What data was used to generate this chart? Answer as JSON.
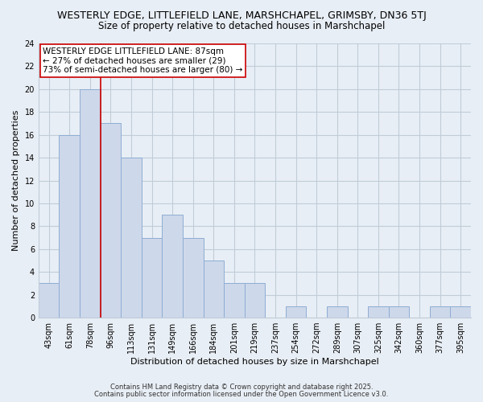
{
  "title": "WESTERLY EDGE, LITTLEFIELD LANE, MARSHCHAPEL, GRIMSBY, DN36 5TJ",
  "subtitle": "Size of property relative to detached houses in Marshchapel",
  "xlabel": "Distribution of detached houses by size in Marshchapel",
  "ylabel": "Number of detached properties",
  "categories": [
    "43sqm",
    "61sqm",
    "78sqm",
    "96sqm",
    "113sqm",
    "131sqm",
    "149sqm",
    "166sqm",
    "184sqm",
    "201sqm",
    "219sqm",
    "237sqm",
    "254sqm",
    "272sqm",
    "289sqm",
    "307sqm",
    "325sqm",
    "342sqm",
    "360sqm",
    "377sqm",
    "395sqm"
  ],
  "values": [
    3,
    16,
    20,
    17,
    14,
    7,
    9,
    7,
    5,
    3,
    3,
    0,
    1,
    0,
    1,
    0,
    1,
    1,
    0,
    1,
    1
  ],
  "bar_color": "#cdd8ea",
  "bar_edge_color": "#8eadd4",
  "vline_x_index": 3,
  "vline_color": "#cc0000",
  "annotation_text": "WESTERLY EDGE LITTLEFIELD LANE: 87sqm\n← 27% of detached houses are smaller (29)\n73% of semi-detached houses are larger (80) →",
  "annotation_box_edgecolor": "#cc0000",
  "ylim": [
    0,
    24
  ],
  "yticks": [
    0,
    2,
    4,
    6,
    8,
    10,
    12,
    14,
    16,
    18,
    20,
    22,
    24
  ],
  "footer1": "Contains HM Land Registry data © Crown copyright and database right 2025.",
  "footer2": "Contains public sector information licensed under the Open Government Licence v3.0.",
  "bg_color": "#e8eef5",
  "plot_bg_color": "#e8eef5",
  "grid_color": "#c0ccd8",
  "title_fontsize": 9,
  "subtitle_fontsize": 8.5,
  "axis_label_fontsize": 8,
  "tick_fontsize": 7,
  "annotation_fontsize": 7.5,
  "footer_fontsize": 6
}
